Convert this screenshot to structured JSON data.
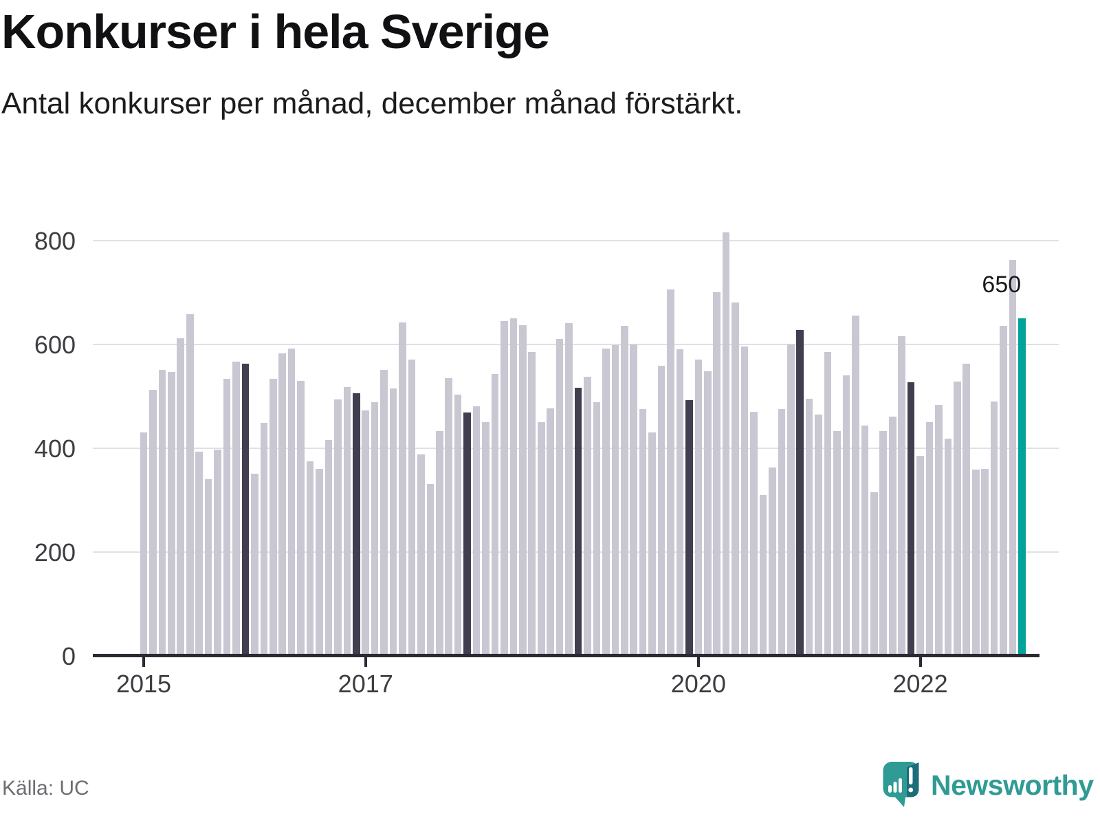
{
  "header": {
    "title": "Konkurser i hela Sverige",
    "subtitle": "Antal konkurser per månad, december månad förstärkt."
  },
  "footer": {
    "source": "Källa: UC",
    "brand": "Newsworthy"
  },
  "chart_data": {
    "type": "bar",
    "title": "Konkurser i hela Sverige",
    "ylabel": "Antal konkurser per månad",
    "ylim": [
      0,
      850
    ],
    "y_ticks": [
      0,
      200,
      400,
      600,
      800
    ],
    "grid": true,
    "x_tick_labels": [
      "2015",
      "2017",
      "2020",
      "2022"
    ],
    "x_tick_month_index": [
      0,
      24,
      60,
      84
    ],
    "start_year": 2015,
    "end_year": 2022,
    "series": [
      {
        "year": 2015,
        "values": [
          430,
          512,
          550,
          546,
          611,
          658,
          393,
          340,
          397,
          533,
          566,
          562
        ]
      },
      {
        "year": 2016,
        "values": [
          351,
          448,
          533,
          582,
          592,
          530,
          374,
          360,
          415,
          494,
          517,
          505
        ]
      },
      {
        "year": 2017,
        "values": [
          473,
          488,
          550,
          515,
          642,
          570,
          388,
          330,
          432,
          535,
          503,
          468
        ]
      },
      {
        "year": 2018,
        "values": [
          481,
          450,
          543,
          645,
          650,
          637,
          585,
          450,
          477,
          610,
          641,
          516
        ]
      },
      {
        "year": 2019,
        "values": [
          537,
          488,
          592,
          598,
          636,
          600,
          475,
          430,
          558,
          705,
          590,
          492
        ]
      },
      {
        "year": 2020,
        "values": [
          570,
          548,
          700,
          816,
          680,
          595,
          470,
          310,
          363,
          475,
          600,
          627
        ]
      },
      {
        "year": 2021,
        "values": [
          495,
          465,
          585,
          433,
          540,
          655,
          443,
          315,
          433,
          460,
          615,
          527
        ]
      },
      {
        "year": 2022,
        "values": [
          385,
          450,
          483,
          418,
          528,
          562,
          358,
          360,
          490,
          635,
          763,
          650
        ]
      }
    ],
    "annotation": {
      "text": "650",
      "month": "2022-12",
      "value": 650
    },
    "legend": "none",
    "colors": {
      "bar": "#c9c7d2",
      "december": "#413f4f",
      "latest": "#00a39b",
      "axis": "#2b2a33",
      "grid": "#e2e0e5",
      "text": "#1a1a1a",
      "muted": "#3d3d42",
      "source": "#6d6d72",
      "brand": "#2f9b94",
      "brand_dark": "#1c6d79"
    }
  }
}
